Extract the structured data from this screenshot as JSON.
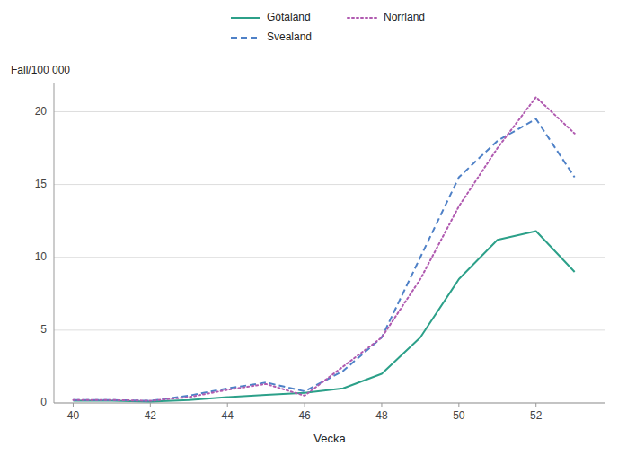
{
  "chart_data": {
    "type": "line",
    "xlabel": "Vecka",
    "ylabel": "Fall/100 000",
    "x": [
      40,
      41,
      42,
      43,
      44,
      45,
      46,
      47,
      48,
      49,
      50,
      51,
      52,
      53
    ],
    "series": [
      {
        "name": "Götaland",
        "color": "#2ca089",
        "line_style": "solid",
        "values": [
          0.15,
          0.15,
          0.1,
          0.2,
          0.4,
          0.55,
          0.7,
          1.0,
          2.0,
          4.5,
          8.5,
          11.2,
          11.8,
          9.0
        ]
      },
      {
        "name": "Svealand",
        "color": "#4f81c7",
        "line_style": "dashed",
        "values": [
          0.2,
          0.2,
          0.15,
          0.5,
          1.0,
          1.4,
          0.8,
          2.2,
          4.5,
          10.0,
          15.5,
          18.0,
          19.5,
          15.5
        ]
      },
      {
        "name": "Norrland",
        "color": "#b05ab0",
        "line_style": "dotted",
        "values": [
          0.2,
          0.2,
          0.15,
          0.4,
          0.9,
          1.3,
          0.5,
          2.5,
          4.5,
          8.5,
          13.5,
          17.5,
          21.0,
          18.5
        ]
      }
    ],
    "xlim": [
      39.5,
      53.8
    ],
    "xticks": [
      40,
      42,
      44,
      46,
      48,
      50,
      52
    ],
    "ylim": [
      0,
      22
    ],
    "yticks": [
      0,
      5,
      10,
      15,
      20
    ],
    "grid": true,
    "legend": "top"
  }
}
